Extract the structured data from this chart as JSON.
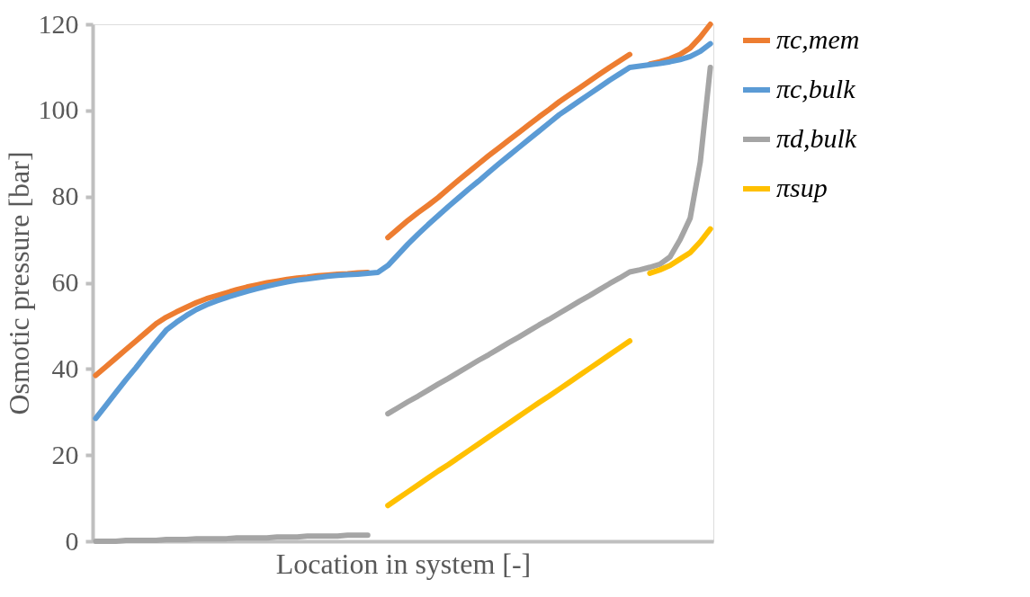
{
  "chart_data": {
    "type": "line",
    "xlabel": "Location in  system [-]",
    "ylabel": "Osmotic pressure [bar]",
    "categories": [
      null,
      null,
      null,
      null,
      null,
      null,
      null,
      null,
      null,
      null,
      null,
      null,
      null,
      null,
      null,
      null,
      null,
      null,
      null,
      null,
      null,
      null,
      null,
      null,
      null,
      null,
      null,
      null,
      null,
      null,
      null,
      null,
      null,
      null,
      null,
      null,
      null,
      null,
      null,
      null,
      null,
      null,
      null,
      null,
      null,
      null,
      null,
      null,
      null,
      null,
      null,
      null,
      null,
      null,
      null,
      null,
      null,
      null,
      null,
      null,
      null,
      null
    ],
    "ylim": [
      0,
      120
    ],
    "yticks": [
      0,
      20,
      40,
      60,
      80,
      100,
      120
    ],
    "grid": false,
    "legend": "right",
    "series": [
      {
        "name": "πc,mem",
        "color": "#ed7d31",
        "values": [
          38.5,
          40.5,
          42.5,
          44.5,
          46.5,
          48.5,
          50.5,
          52,
          53.2,
          54.3,
          55.4,
          56.3,
          57,
          57.7,
          58.4,
          59,
          59.5,
          60,
          60.4,
          60.8,
          61.1,
          61.3,
          61.6,
          61.8,
          62,
          62.1,
          62.3,
          62.4,
          null,
          70.5,
          72.5,
          74.5,
          76.3,
          78,
          79.8,
          81.8,
          83.8,
          85.7,
          87.6,
          89.5,
          91.3,
          93.1,
          94.9,
          96.7,
          98.5,
          100.2,
          102,
          103.6,
          105.2,
          106.8,
          108.4,
          110,
          111.5,
          113,
          null,
          110.8,
          111.3,
          112,
          113,
          114.5,
          117,
          120
        ]
      },
      {
        "name": "πc,bulk",
        "color": "#5b9bd5",
        "values": [
          28.5,
          31.5,
          34.5,
          37.5,
          40.3,
          43.3,
          46.2,
          49,
          50.8,
          52.4,
          53.8,
          54.9,
          55.8,
          56.6,
          57.3,
          58,
          58.6,
          59.2,
          59.7,
          60.2,
          60.6,
          60.9,
          61.2,
          61.5,
          61.7,
          61.9,
          62,
          62.2,
          62.4,
          64,
          66.5,
          69,
          71.3,
          73.5,
          75.6,
          77.7,
          79.7,
          81.7,
          83.6,
          85.6,
          87.6,
          89.5,
          91.4,
          93.3,
          95.2,
          97.1,
          99,
          100.6,
          102.2,
          103.8,
          105.4,
          107,
          108.5,
          110,
          110.3,
          110.6,
          110.9,
          111.3,
          111.8,
          112.5,
          113.7,
          115.5
        ]
      },
      {
        "name": "πd,bulk",
        "color": "#a5a5a5",
        "values": [
          0,
          0,
          0,
          0.2,
          0.2,
          0.2,
          0.2,
          0.4,
          0.4,
          0.4,
          0.6,
          0.6,
          0.6,
          0.6,
          0.8,
          0.8,
          0.8,
          0.8,
          1,
          1,
          1,
          1.2,
          1.2,
          1.2,
          1.2,
          1.4,
          1.4,
          1.4,
          null,
          29.6,
          31,
          32.4,
          33.7,
          35.1,
          36.5,
          37.8,
          39.2,
          40.6,
          42,
          43.3,
          44.7,
          46.1,
          47.4,
          48.8,
          50.2,
          51.5,
          52.9,
          54.3,
          55.7,
          57,
          58.4,
          59.8,
          61.1,
          62.5,
          63,
          63.6,
          64.3,
          66,
          70,
          75,
          88,
          110
        ]
      },
      {
        "name": "πsup",
        "color": "#ffc000",
        "values": [
          null,
          null,
          null,
          null,
          null,
          null,
          null,
          null,
          null,
          null,
          null,
          null,
          null,
          null,
          null,
          null,
          null,
          null,
          null,
          null,
          null,
          null,
          null,
          null,
          null,
          null,
          null,
          null,
          null,
          8.3,
          9.9,
          11.5,
          13.1,
          14.7,
          16.3,
          17.8,
          19.4,
          21,
          22.6,
          24.2,
          25.8,
          27.4,
          29,
          30.6,
          32.2,
          33.7,
          35.3,
          36.9,
          38.5,
          40.1,
          41.7,
          43.3,
          44.9,
          46.5,
          null,
          62.2,
          63,
          64,
          65.5,
          67,
          69.5,
          72.5
        ]
      }
    ]
  }
}
